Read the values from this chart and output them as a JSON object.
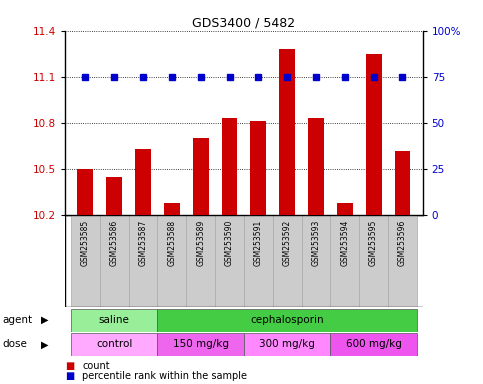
{
  "title": "GDS3400 / 5482",
  "samples": [
    "GSM253585",
    "GSM253586",
    "GSM253587",
    "GSM253588",
    "GSM253589",
    "GSM253590",
    "GSM253591",
    "GSM253592",
    "GSM253593",
    "GSM253594",
    "GSM253595",
    "GSM253596"
  ],
  "bar_values": [
    10.5,
    10.45,
    10.63,
    10.28,
    10.7,
    10.83,
    10.81,
    11.28,
    10.83,
    10.28,
    11.25,
    10.62
  ],
  "percentile_values_pct": [
    75,
    75,
    75,
    75,
    75,
    75,
    75,
    75,
    75,
    75,
    75,
    75
  ],
  "ylim_left": [
    10.2,
    11.4
  ],
  "ylim_right": [
    0,
    100
  ],
  "yticks_left": [
    10.2,
    10.5,
    10.8,
    11.1,
    11.4
  ],
  "ytick_labels_left": [
    "10.2",
    "10.5",
    "10.8",
    "11.1",
    "11.4"
  ],
  "yticks_right": [
    0,
    25,
    50,
    75,
    100
  ],
  "ytick_labels_right": [
    "0",
    "25",
    "50",
    "75",
    "100%"
  ],
  "bar_color": "#cc0000",
  "percentile_color": "#0000cc",
  "agent_groups": [
    {
      "label": "saline",
      "start": 0,
      "end": 3,
      "color": "#99ee99"
    },
    {
      "label": "cephalosporin",
      "start": 3,
      "end": 12,
      "color": "#44cc44"
    }
  ],
  "dose_groups": [
    {
      "label": "control",
      "start": 0,
      "end": 3,
      "color": "#ffaaff"
    },
    {
      "label": "150 mg/kg",
      "start": 3,
      "end": 6,
      "color": "#ee66ee"
    },
    {
      "label": "300 mg/kg",
      "start": 6,
      "end": 9,
      "color": "#ff88ff"
    },
    {
      "label": "600 mg/kg",
      "start": 9,
      "end": 12,
      "color": "#ee55ee"
    }
  ],
  "legend_count_color": "#cc0000",
  "legend_pct_color": "#0000cc",
  "bg_color": "#ffffff",
  "tick_label_color_left": "#cc0000",
  "tick_label_color_right": "#0000cc",
  "bar_width": 0.55,
  "label_cell_color": "#cccccc",
  "label_cell_edge": "#aaaaaa"
}
